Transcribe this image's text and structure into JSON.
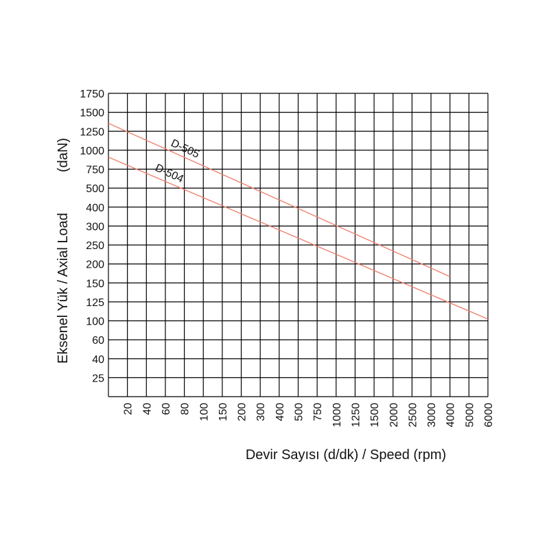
{
  "chart_data": {
    "type": "line",
    "title": "",
    "xlabel": "Devir Sayısı (d/dk) / Speed (rpm)",
    "ylabel_main": "Eksenel Yük /  Axial Load",
    "ylabel_unit": "(daN)",
    "x_ticks": [
      "20",
      "40",
      "60",
      "80",
      "100",
      "150",
      "200",
      "300",
      "400",
      "500",
      "750",
      "1000",
      "1250",
      "1500",
      "2000",
      "2500",
      "3000",
      "4000",
      "5000",
      "6000"
    ],
    "y_ticks": [
      "25",
      "40",
      "60",
      "100",
      "125",
      "150",
      "200",
      "250",
      "300",
      "400",
      "500",
      "750",
      "1000",
      "1250",
      "1500",
      "1750"
    ],
    "grid": true,
    "series": [
      {
        "name": "D-505",
        "color": "#f08070",
        "points": [
          {
            "x": 10,
            "y": 1350
          },
          {
            "x": 4000,
            "y": 165
          }
        ]
      },
      {
        "name": "D-504",
        "color": "#f08070",
        "points": [
          {
            "x": 10,
            "y": 900
          },
          {
            "x": 6000,
            "y": 102
          }
        ]
      }
    ]
  }
}
